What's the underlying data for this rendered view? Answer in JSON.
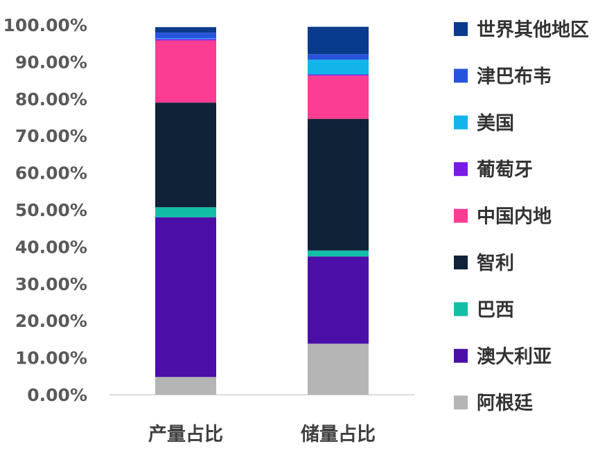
{
  "chart_data": {
    "type": "bar",
    "stacked": true,
    "categories": [
      "产量占比",
      "储量占比"
    ],
    "series": [
      {
        "name": "阿根廷",
        "color": "#b5b5b5",
        "values": [
          4.8,
          13.8
        ]
      },
      {
        "name": "澳大利亚",
        "color": "#4b0fa8",
        "values": [
          43.2,
          23.6
        ]
      },
      {
        "name": "巴西",
        "color": "#12bfa6",
        "values": [
          2.7,
          1.6
        ]
      },
      {
        "name": "智利",
        "color": "#0f2238",
        "values": [
          28.3,
          35.6
        ]
      },
      {
        "name": "中国内地",
        "color": "#fb3d93",
        "values": [
          16.8,
          11.7
        ]
      },
      {
        "name": "葡萄牙",
        "color": "#7a1ce6",
        "values": [
          0.4,
          0.3
        ]
      },
      {
        "name": "美国",
        "color": "#11b5ea",
        "values": [
          0.2,
          4.0
        ]
      },
      {
        "name": "津巴布韦",
        "color": "#2654dc",
        "values": [
          1.5,
          1.5
        ]
      },
      {
        "name": "世界其他地区",
        "color": "#093a8c",
        "values": [
          1.5,
          7.4
        ]
      }
    ],
    "yticks": [
      "0.00%",
      "10.00%",
      "20.00%",
      "30.00%",
      "40.00%",
      "50.00%",
      "60.00%",
      "70.00%",
      "80.00%",
      "90.00%",
      "100.00%"
    ],
    "ylim": [
      0,
      100
    ],
    "grid": false,
    "legend_position": "right",
    "legend_order": [
      "世界其他地区",
      "津巴布韦",
      "美国",
      "葡萄牙",
      "中国内地",
      "智利",
      "巴西",
      "澳大利亚",
      "阿根廷"
    ]
  }
}
